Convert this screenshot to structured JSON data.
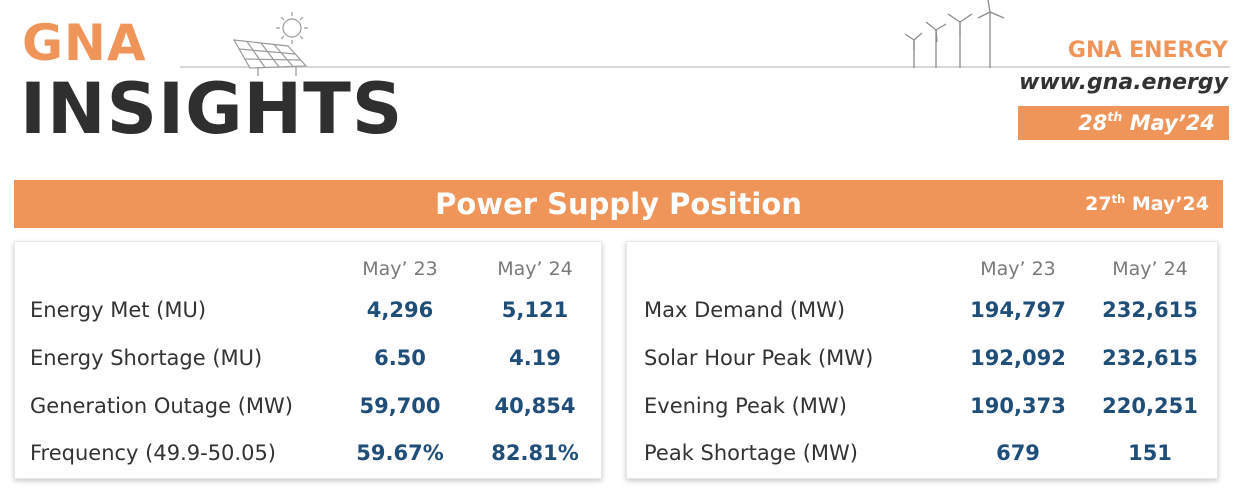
{
  "header": {
    "logo_line1": "GNA",
    "logo_line2": "INSIGHTS",
    "brand_name": "GNA ENERGY",
    "brand_url": "www.gna.energy",
    "issue_day": "28",
    "issue_day_suffix": "th",
    "issue_month_year": "May’24"
  },
  "banner": {
    "title": "Power Supply Position",
    "date_day": "27",
    "date_suffix": "th",
    "date_month_year": "May’24"
  },
  "columns": [
    "May’ 23",
    "May’ 24"
  ],
  "left_table": {
    "rows": [
      {
        "label": "Energy Met (MU)",
        "may23": "4,296",
        "may24": "5,121"
      },
      {
        "label": "Energy Shortage (MU)",
        "may23": "6.50",
        "may24": "4.19"
      },
      {
        "label": "Generation Outage (MW)",
        "may23": "59,700",
        "may24": "40,854"
      },
      {
        "label": "Frequency (49.9-50.05)",
        "may23": "59.67%",
        "may24": "82.81%"
      }
    ]
  },
  "right_table": {
    "rows": [
      {
        "label": "Max Demand (MW)",
        "may23": "194,797",
        "may24": "232,615"
      },
      {
        "label": "Solar Hour Peak (MW)",
        "may23": "192,092",
        "may24": "232,615"
      },
      {
        "label": "Evening Peak (MW)",
        "may23": "190,373",
        "may24": "220,251"
      },
      {
        "label": "Peak Shortage (MW)",
        "may23": "679",
        "may24": "151"
      }
    ]
  },
  "colors": {
    "accent": "#f0955a",
    "value_blue": "#1f4e79",
    "logo_dark": "#2f2f2f"
  },
  "icons": [
    "solar-panel-sun-icon",
    "wind-turbines-icon"
  ]
}
